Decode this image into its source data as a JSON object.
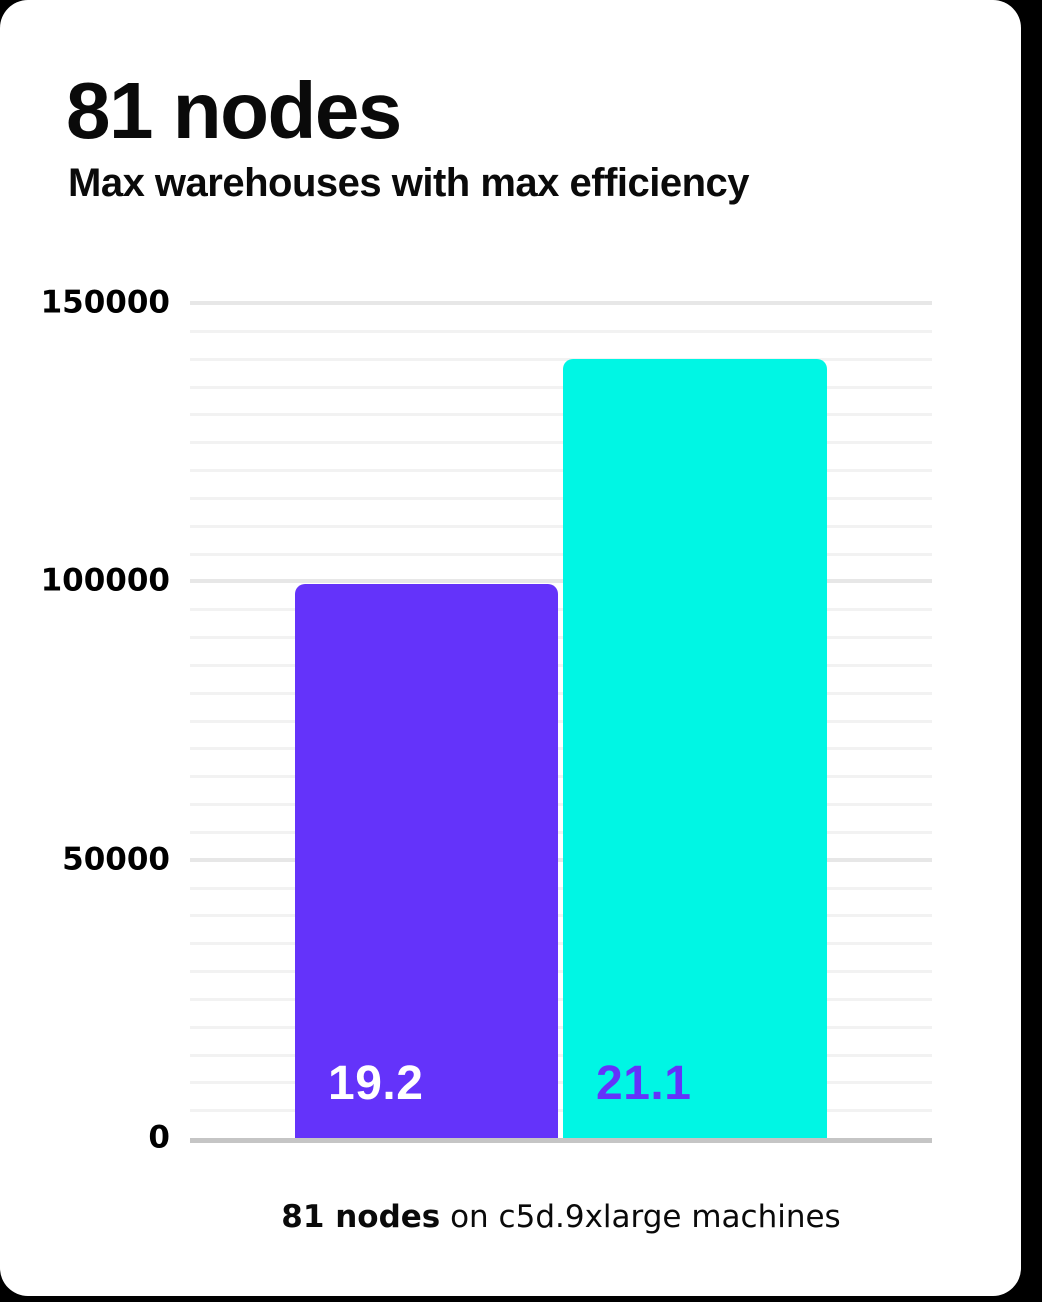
{
  "page": {
    "background_color": "#000000",
    "card_color": "#FFFFFF"
  },
  "header": {
    "title": "81 nodes",
    "subtitle": "Max warehouses with max efficiency"
  },
  "caption": {
    "bold": "81 nodes",
    "rest": " on c5d.9xlarge machines"
  },
  "chart_data": {
    "type": "bar",
    "title": "81 nodes",
    "subtitle": "Max warehouses with max efficiency",
    "caption": "81 nodes on c5d.9xlarge machines",
    "ylim": [
      0,
      150000
    ],
    "y_major_step": 50000,
    "y_minor_step": 5000,
    "y_ticks": [
      "150000",
      "100000",
      "50000",
      "0"
    ],
    "grid": true,
    "legend": "none",
    "axis_baseline_color": "#C5C5C5",
    "major_gridline_color": "#E7E7E7",
    "minor_gridline_color": "#F2F2F2",
    "bars": [
      {
        "data_label": "19.2",
        "value": 99500,
        "color": "#6433FA",
        "label_color": "#FFFFFF"
      },
      {
        "data_label": "21.1",
        "value": 140000,
        "color": "#00F6E4",
        "label_color": "#6433FA"
      }
    ]
  }
}
